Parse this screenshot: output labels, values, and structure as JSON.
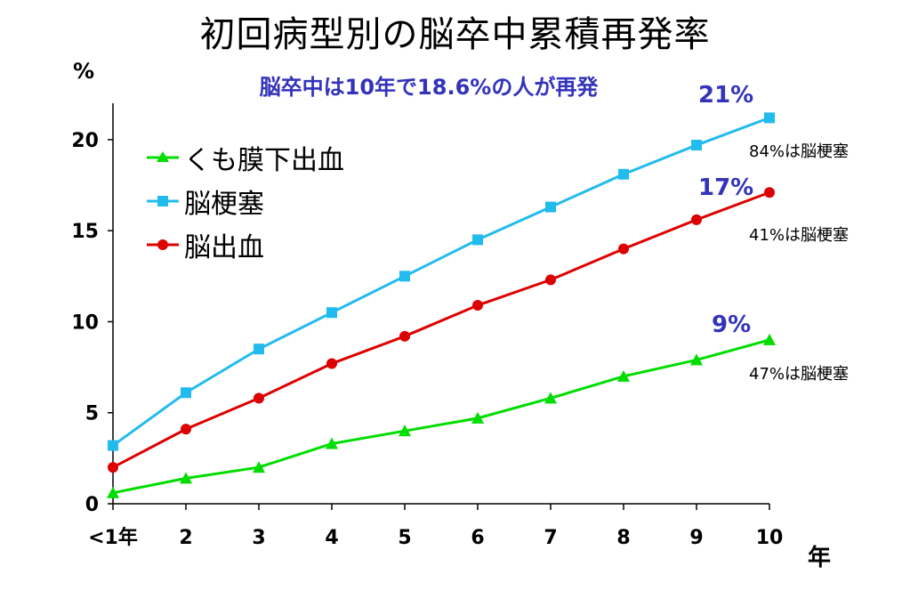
{
  "chart_data": {
    "type": "line",
    "title": "初回病型別の脳卒中累積再発率",
    "subtitle": "脳卒中は10年で18.6%の人が再発",
    "ylabel": "%",
    "xlabel": "年",
    "categories": [
      "<1年",
      "2",
      "3",
      "4",
      "5",
      "6",
      "7",
      "8",
      "9",
      "10"
    ],
    "ylim": [
      0,
      22
    ],
    "yticks": [
      0,
      5,
      10,
      15,
      20
    ],
    "grid": false,
    "legend_position": "top-left",
    "series": [
      {
        "name": "くも膜下出血",
        "color": "#00dd00",
        "marker": "triangle",
        "values": [
          0.6,
          1.4,
          2.0,
          3.3,
          4.0,
          4.7,
          5.8,
          7.0,
          7.9,
          9.0
        ]
      },
      {
        "name": "脳梗塞",
        "color": "#22bbee",
        "marker": "square",
        "values": [
          3.2,
          6.1,
          8.5,
          10.5,
          12.5,
          14.5,
          16.3,
          18.1,
          19.7,
          21.2
        ]
      },
      {
        "name": "脳出血",
        "color": "#dd0000",
        "marker": "circle",
        "values": [
          2.0,
          4.1,
          5.8,
          7.7,
          9.2,
          10.9,
          12.3,
          14.0,
          15.6,
          17.1
        ]
      }
    ],
    "annotations": {
      "end_labels": [
        "21%",
        "17%",
        "9%"
      ],
      "notes": [
        "84%は脳梗塞",
        "41%は脳梗塞",
        "47%は脳梗塞"
      ]
    }
  }
}
